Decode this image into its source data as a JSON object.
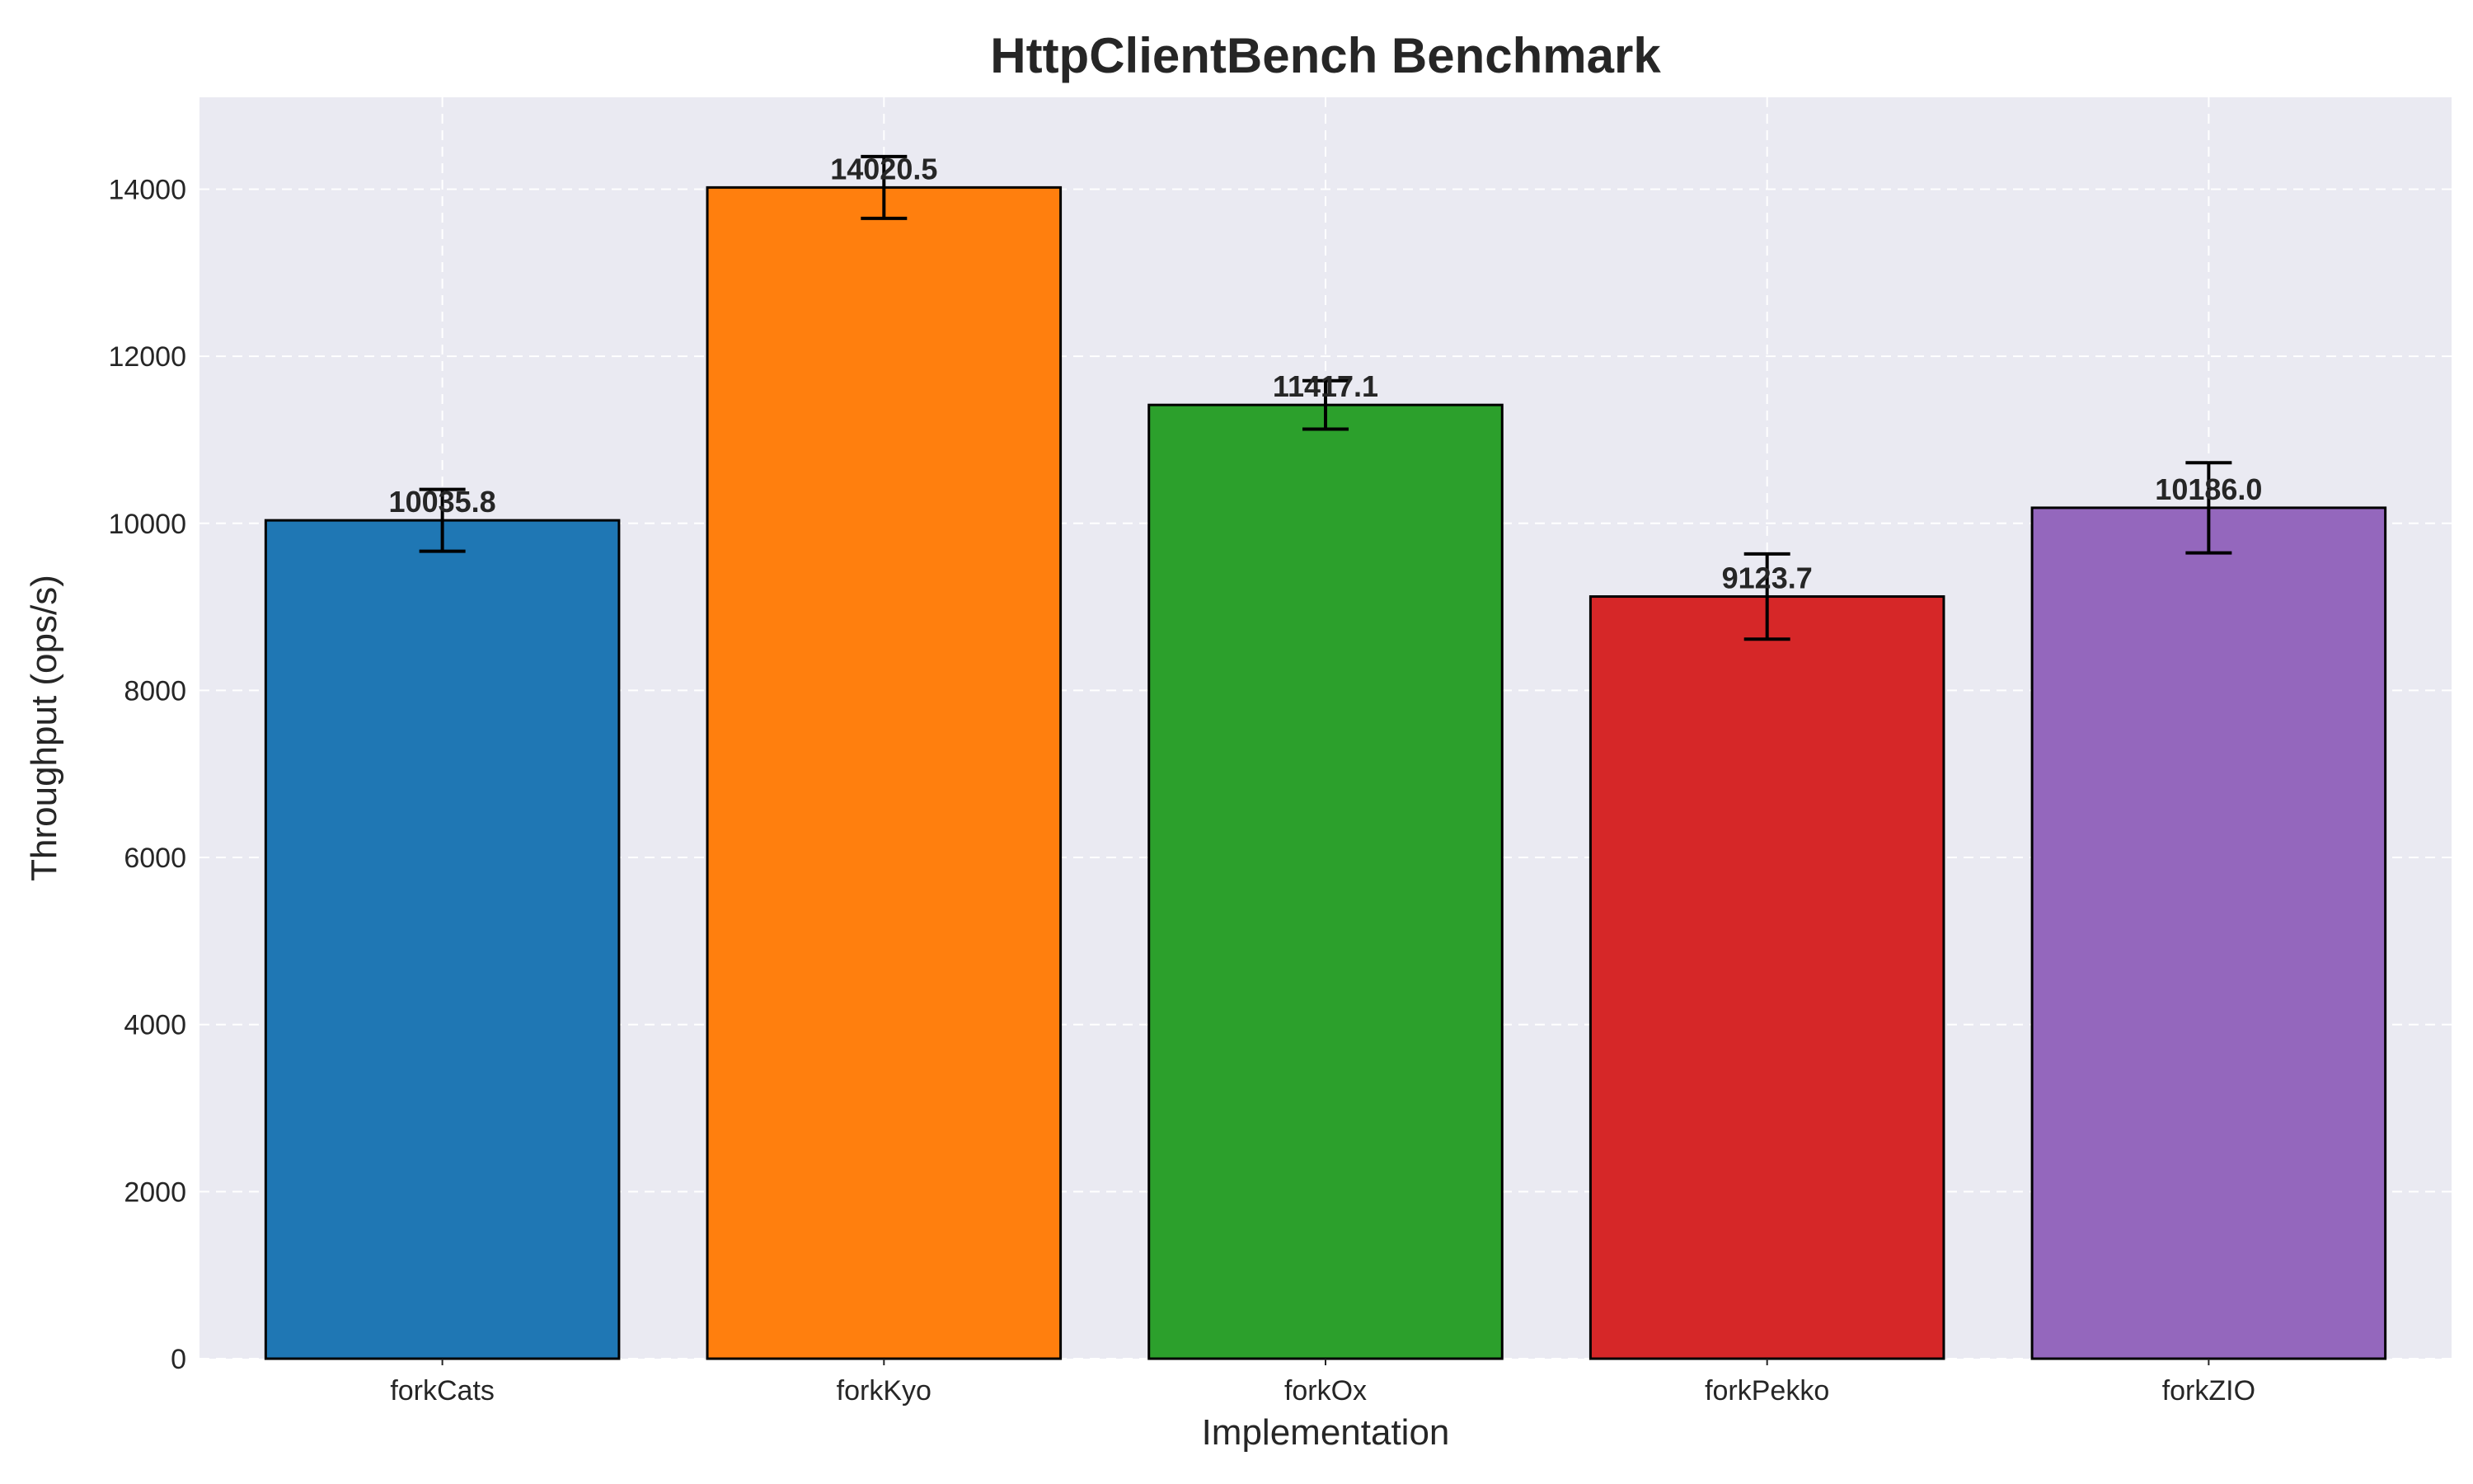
{
  "chart_data": {
    "type": "bar",
    "title": "HttpClientBench Benchmark",
    "xlabel": "Implementation",
    "ylabel": "Throughput (ops/s)",
    "categories": [
      "forkCats",
      "forkKyo",
      "forkOx",
      "forkPekko",
      "forkZIO"
    ],
    "values": [
      10035.8,
      14020.5,
      11417.1,
      9123.7,
      10186.0
    ],
    "value_labels": [
      "10035.8",
      "14020.5",
      "11417.1",
      "9123.7",
      "10186.0"
    ],
    "errors": [
      370,
      370,
      290,
      510,
      540
    ],
    "colors": [
      "#1f77b4",
      "#ff7f0e",
      "#2ca02c",
      "#d62728",
      "#9467bd"
    ],
    "ylim": [
      0,
      15100
    ],
    "yticks": [
      0,
      2000,
      4000,
      6000,
      8000,
      10000,
      12000,
      14000
    ],
    "ytick_labels": [
      "0",
      "2000",
      "4000",
      "6000",
      "8000",
      "10000",
      "12000",
      "14000"
    ],
    "grid": true,
    "background": "#eaeaf2",
    "grid_color": "#ffffff"
  }
}
